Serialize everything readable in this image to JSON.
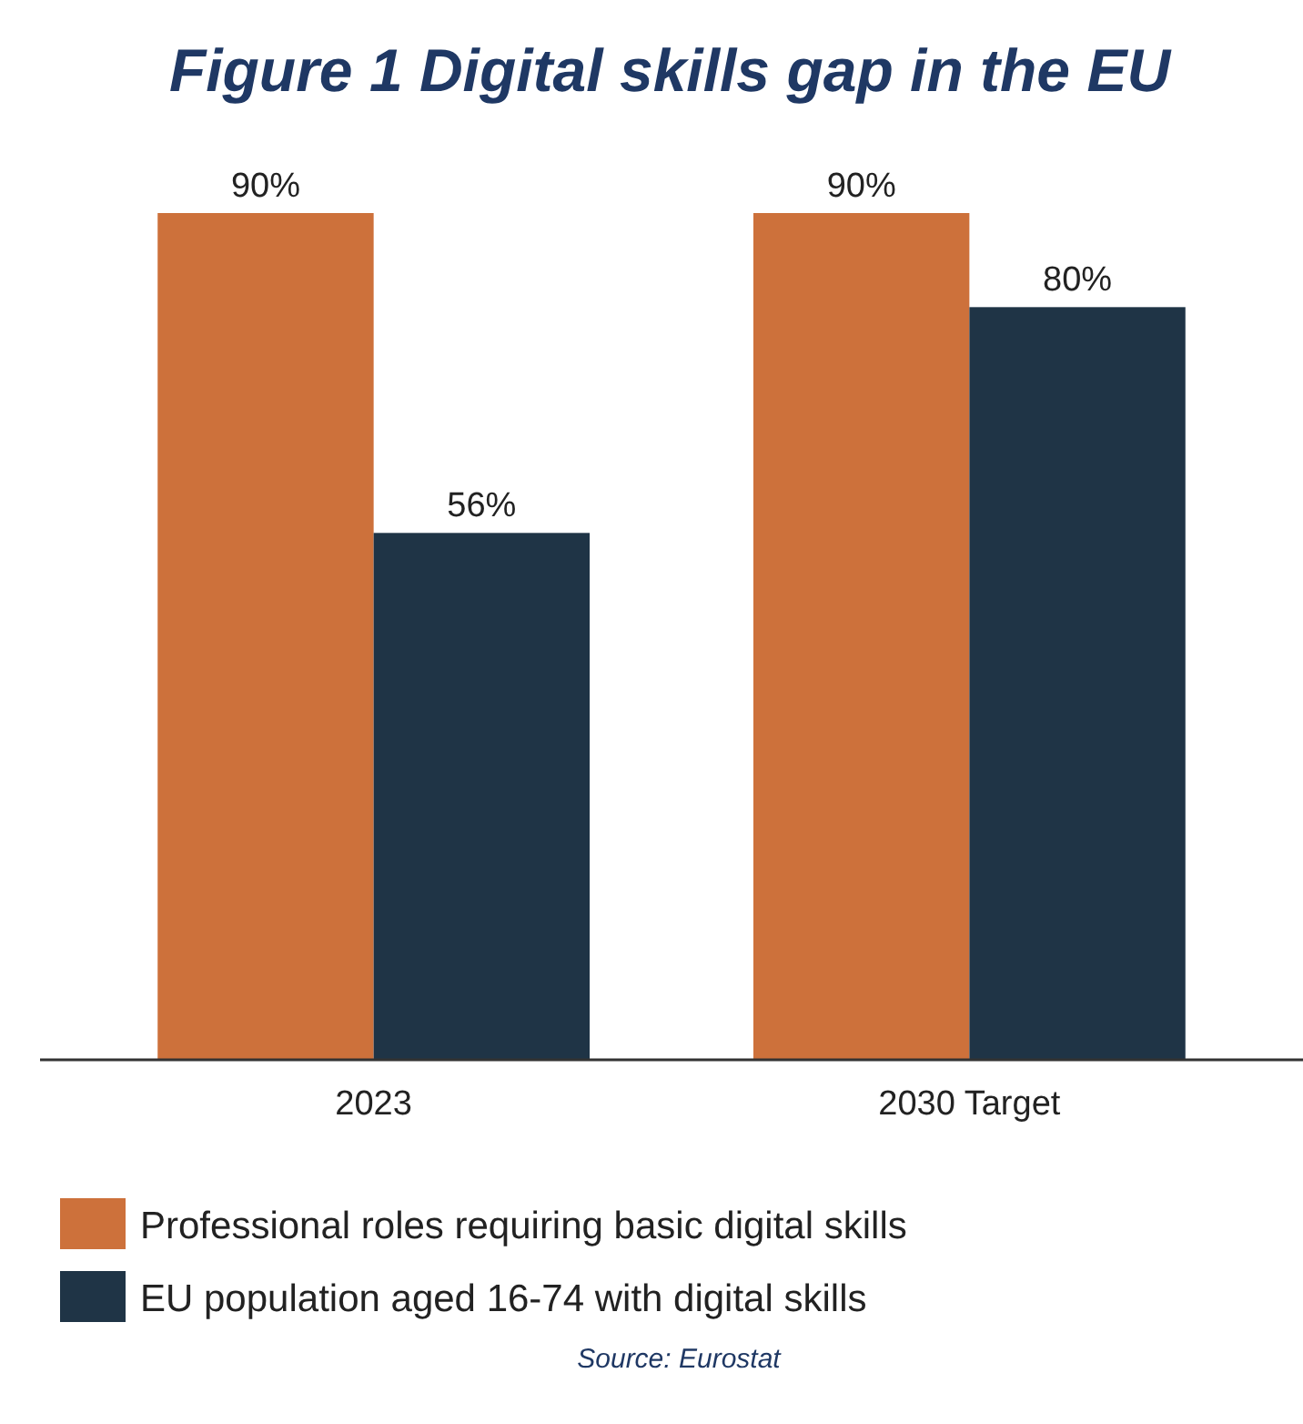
{
  "chart_data": {
    "type": "bar",
    "title": "Figure 1 Digital skills gap in the EU",
    "categories": [
      "2023",
      "2030 Target"
    ],
    "series": [
      {
        "name": "Professional roles requiring basic digital skills",
        "color": "#cd713b",
        "values": [
          90,
          90
        ],
        "value_labels": [
          "90%",
          "90%"
        ]
      },
      {
        "name": "EU population aged 16-74 with digital skills",
        "color": "#1f3446",
        "values": [
          56,
          80
        ],
        "value_labels": [
          "56%",
          "80%"
        ]
      }
    ],
    "legend": "bottom",
    "annotations": [
      "Source: Eurostat"
    ]
  }
}
